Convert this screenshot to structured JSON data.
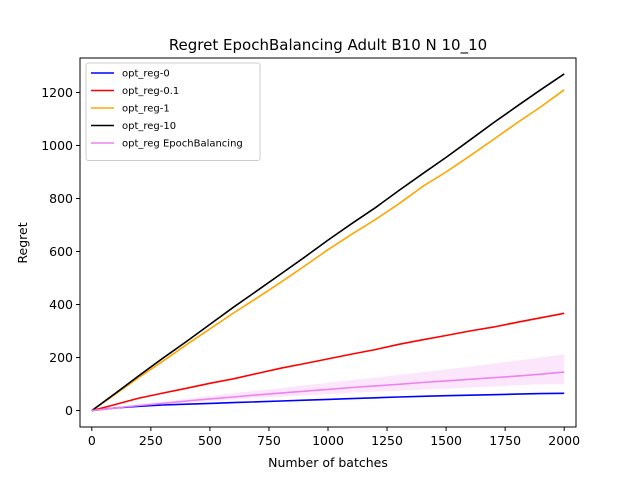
{
  "chart_data": {
    "type": "line",
    "title": "Regret EpochBalancing Adult B10 N 10_10",
    "xlabel": "Number of batches",
    "ylabel": "Regret",
    "xlim": [
      -50,
      2050
    ],
    "ylim": [
      -62,
      1330
    ],
    "xticks": [
      0,
      250,
      500,
      750,
      1000,
      1250,
      1500,
      1750,
      2000
    ],
    "yticks": [
      0,
      200,
      400,
      600,
      800,
      1000,
      1200
    ],
    "grid": false,
    "legend_position": "top-left",
    "series": [
      {
        "name": "opt_reg-0",
        "color": "#0000ff",
        "x": [
          0,
          100,
          200,
          300,
          400,
          500,
          600,
          700,
          800,
          900,
          1000,
          1100,
          1200,
          1300,
          1400,
          1500,
          1600,
          1700,
          1800,
          1900,
          2000
        ],
        "y": [
          0,
          10,
          16,
          21,
          24,
          27,
          30,
          33,
          36,
          39,
          42,
          45,
          48,
          51,
          54,
          56,
          58,
          60,
          62,
          64,
          65
        ]
      },
      {
        "name": "opt_reg-0.1",
        "color": "#ff0000",
        "x": [
          0,
          100,
          200,
          300,
          400,
          500,
          600,
          700,
          800,
          900,
          1000,
          1100,
          1200,
          1300,
          1400,
          1500,
          1600,
          1700,
          1800,
          1900,
          2000
        ],
        "y": [
          0,
          23,
          47,
          66,
          84,
          103,
          120,
          140,
          160,
          177,
          195,
          213,
          230,
          250,
          267,
          283,
          300,
          315,
          333,
          350,
          367
        ]
      },
      {
        "name": "opt_reg-1",
        "color": "#ffa500",
        "x": [
          0,
          100,
          200,
          300,
          400,
          500,
          600,
          700,
          800,
          900,
          1000,
          1100,
          1200,
          1300,
          1400,
          1500,
          1600,
          1700,
          1800,
          1900,
          2000
        ],
        "y": [
          0,
          62,
          125,
          186,
          248,
          308,
          368,
          425,
          484,
          545,
          607,
          665,
          720,
          780,
          845,
          900,
          960,
          1022,
          1085,
          1145,
          1210
        ]
      },
      {
        "name": "opt_reg-10",
        "color": "#000000",
        "x": [
          0,
          100,
          200,
          300,
          400,
          500,
          600,
          700,
          800,
          900,
          1000,
          1100,
          1200,
          1300,
          1400,
          1500,
          1600,
          1700,
          1800,
          1900,
          2000
        ],
        "y": [
          0,
          65,
          132,
          197,
          260,
          325,
          390,
          452,
          515,
          578,
          643,
          705,
          765,
          830,
          893,
          955,
          1020,
          1085,
          1148,
          1210,
          1270
        ]
      },
      {
        "name": "opt_reg EpochBalancing",
        "color": "#ee82ee",
        "x": [
          0,
          100,
          200,
          300,
          400,
          500,
          600,
          700,
          800,
          900,
          1000,
          1100,
          1200,
          1300,
          1400,
          1500,
          1600,
          1700,
          1800,
          1900,
          2000
        ],
        "y": [
          0,
          10,
          19,
          27,
          36,
          44,
          51,
          59,
          66,
          73,
          80,
          87,
          93,
          99,
          106,
          112,
          118,
          124,
          130,
          137,
          145
        ],
        "band_low": [
          0,
          8,
          16,
          23,
          29,
          36,
          41,
          47,
          52,
          57,
          62,
          67,
          71,
          75,
          79,
          83,
          87,
          91,
          95,
          99,
          100
        ],
        "band_high": [
          0,
          12,
          23,
          33,
          44,
          55,
          65,
          75,
          85,
          95,
          105,
          115,
          124,
          134,
          144,
          155,
          166,
          177,
          188,
          200,
          212
        ]
      }
    ]
  }
}
